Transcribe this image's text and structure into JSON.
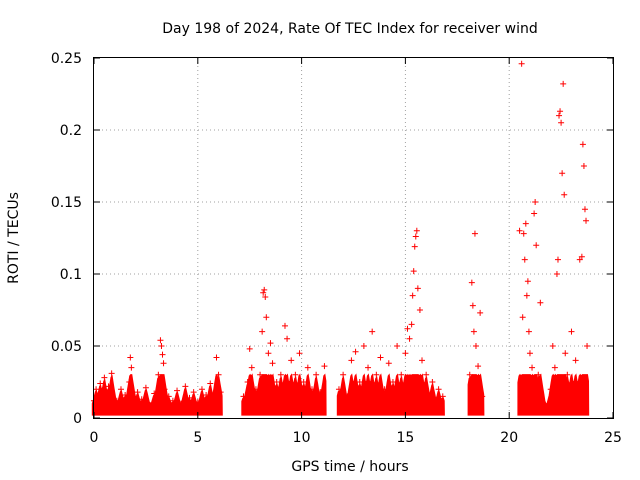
{
  "chart_data": {
    "type": "scatter",
    "title": "Day 198 of 2024, Rate Of TEC Index for receiver wind",
    "xlabel": "GPS time / hours",
    "ylabel": "ROTI / TECUs",
    "xlim": [
      0,
      25
    ],
    "ylim": [
      0,
      0.25
    ],
    "grid": true,
    "marker": "+",
    "marker_color": "#ff0000",
    "x_ticks": [
      0,
      5,
      10,
      15,
      20,
      25
    ],
    "x_tick_labels": [
      "0",
      "5",
      "10",
      "15",
      "20",
      "25"
    ],
    "y_ticks": [
      0,
      0.05,
      0.1,
      0.15,
      0.2,
      0.25
    ],
    "y_tick_labels": [
      "0",
      "0.05",
      "0.1",
      "0.15",
      "0.2",
      "0.25"
    ],
    "series": [
      {
        "name": "ROTI",
        "points": [
          [
            0.0,
            0.012
          ],
          [
            0.1,
            0.02
          ],
          [
            0.2,
            0.008
          ],
          [
            0.3,
            0.024
          ],
          [
            0.4,
            0.015
          ],
          [
            0.5,
            0.028
          ],
          [
            0.6,
            0.01
          ],
          [
            0.7,
            0.022
          ],
          [
            0.8,
            0.018
          ],
          [
            0.85,
            0.031
          ],
          [
            1.1,
            0.012
          ],
          [
            1.3,
            0.02
          ],
          [
            1.5,
            0.016
          ],
          [
            1.7,
            0.025
          ],
          [
            1.75,
            0.042
          ],
          [
            1.8,
            0.035
          ],
          [
            1.9,
            0.01
          ],
          [
            2.1,
            0.018
          ],
          [
            2.3,
            0.013
          ],
          [
            2.5,
            0.021
          ],
          [
            2.7,
            0.009
          ],
          [
            2.9,
            0.017
          ],
          [
            3.1,
            0.03
          ],
          [
            3.2,
            0.054
          ],
          [
            3.25,
            0.05
          ],
          [
            3.3,
            0.044
          ],
          [
            3.35,
            0.038
          ],
          [
            3.4,
            0.02
          ],
          [
            3.6,
            0.015
          ],
          [
            3.8,
            0.012
          ],
          [
            4.0,
            0.019
          ],
          [
            4.2,
            0.01
          ],
          [
            4.4,
            0.022
          ],
          [
            4.6,
            0.014
          ],
          [
            4.8,
            0.018
          ],
          [
            5.0,
            0.011
          ],
          [
            5.2,
            0.02
          ],
          [
            5.4,
            0.016
          ],
          [
            5.6,
            0.024
          ],
          [
            5.8,
            0.012
          ],
          [
            5.9,
            0.042
          ],
          [
            6.0,
            0.03
          ],
          [
            6.1,
            0.018
          ],
          [
            7.2,
            0.015
          ],
          [
            7.4,
            0.025
          ],
          [
            7.5,
            0.048
          ],
          [
            7.6,
            0.035
          ],
          [
            7.8,
            0.02
          ],
          [
            8.0,
            0.03
          ],
          [
            8.1,
            0.06
          ],
          [
            8.15,
            0.087
          ],
          [
            8.2,
            0.089
          ],
          [
            8.25,
            0.084
          ],
          [
            8.3,
            0.07
          ],
          [
            8.4,
            0.045
          ],
          [
            8.5,
            0.052
          ],
          [
            8.6,
            0.038
          ],
          [
            8.8,
            0.025
          ],
          [
            9.0,
            0.03
          ],
          [
            9.2,
            0.064
          ],
          [
            9.3,
            0.055
          ],
          [
            9.5,
            0.04
          ],
          [
            9.7,
            0.03
          ],
          [
            9.9,
            0.045
          ],
          [
            10.1,
            0.025
          ],
          [
            10.3,
            0.035
          ],
          [
            10.5,
            0.02
          ],
          [
            10.7,
            0.03
          ],
          [
            10.9,
            0.018
          ],
          [
            11.1,
            0.036
          ],
          [
            11.8,
            0.02
          ],
          [
            12.0,
            0.03
          ],
          [
            12.2,
            0.015
          ],
          [
            12.4,
            0.04
          ],
          [
            12.6,
            0.046
          ],
          [
            12.8,
            0.025
          ],
          [
            13.0,
            0.05
          ],
          [
            13.2,
            0.035
          ],
          [
            13.4,
            0.06
          ],
          [
            13.6,
            0.03
          ],
          [
            13.8,
            0.042
          ],
          [
            14.0,
            0.02
          ],
          [
            14.2,
            0.038
          ],
          [
            14.4,
            0.025
          ],
          [
            14.6,
            0.05
          ],
          [
            14.8,
            0.03
          ],
          [
            15.0,
            0.045
          ],
          [
            15.1,
            0.062
          ],
          [
            15.2,
            0.055
          ],
          [
            15.3,
            0.065
          ],
          [
            15.35,
            0.085
          ],
          [
            15.4,
            0.102
          ],
          [
            15.45,
            0.119
          ],
          [
            15.5,
            0.126
          ],
          [
            15.55,
            0.13
          ],
          [
            15.6,
            0.09
          ],
          [
            15.7,
            0.075
          ],
          [
            15.8,
            0.04
          ],
          [
            16.0,
            0.03
          ],
          [
            16.3,
            0.025
          ],
          [
            16.6,
            0.02
          ],
          [
            16.8,
            0.015
          ],
          [
            18.1,
            0.03
          ],
          [
            18.2,
            0.094
          ],
          [
            18.25,
            0.078
          ],
          [
            18.3,
            0.06
          ],
          [
            18.35,
            0.128
          ],
          [
            18.4,
            0.05
          ],
          [
            18.5,
            0.036
          ],
          [
            18.6,
            0.073
          ],
          [
            18.7,
            0.015
          ],
          [
            20.5,
            0.13
          ],
          [
            20.55,
            0.025
          ],
          [
            20.6,
            0.246
          ],
          [
            20.65,
            0.07
          ],
          [
            20.7,
            0.128
          ],
          [
            20.75,
            0.11
          ],
          [
            20.8,
            0.135
          ],
          [
            20.85,
            0.085
          ],
          [
            20.9,
            0.095
          ],
          [
            20.95,
            0.06
          ],
          [
            21.0,
            0.045
          ],
          [
            21.1,
            0.035
          ],
          [
            21.2,
            0.142
          ],
          [
            21.25,
            0.15
          ],
          [
            21.3,
            0.12
          ],
          [
            21.4,
            0.03
          ],
          [
            21.5,
            0.08
          ],
          [
            22.0,
            0.02
          ],
          [
            22.1,
            0.05
          ],
          [
            22.2,
            0.035
          ],
          [
            22.3,
            0.1
          ],
          [
            22.35,
            0.11
          ],
          [
            22.4,
            0.21
          ],
          [
            22.45,
            0.213
          ],
          [
            22.5,
            0.205
          ],
          [
            22.55,
            0.17
          ],
          [
            22.6,
            0.232
          ],
          [
            22.65,
            0.155
          ],
          [
            22.7,
            0.045
          ],
          [
            22.8,
            0.03
          ],
          [
            23.0,
            0.06
          ],
          [
            23.2,
            0.04
          ],
          [
            23.4,
            0.11
          ],
          [
            23.5,
            0.112
          ],
          [
            23.55,
            0.19
          ],
          [
            23.6,
            0.175
          ],
          [
            23.65,
            0.145
          ],
          [
            23.7,
            0.137
          ],
          [
            23.75,
            0.05
          ]
        ]
      }
    ]
  }
}
